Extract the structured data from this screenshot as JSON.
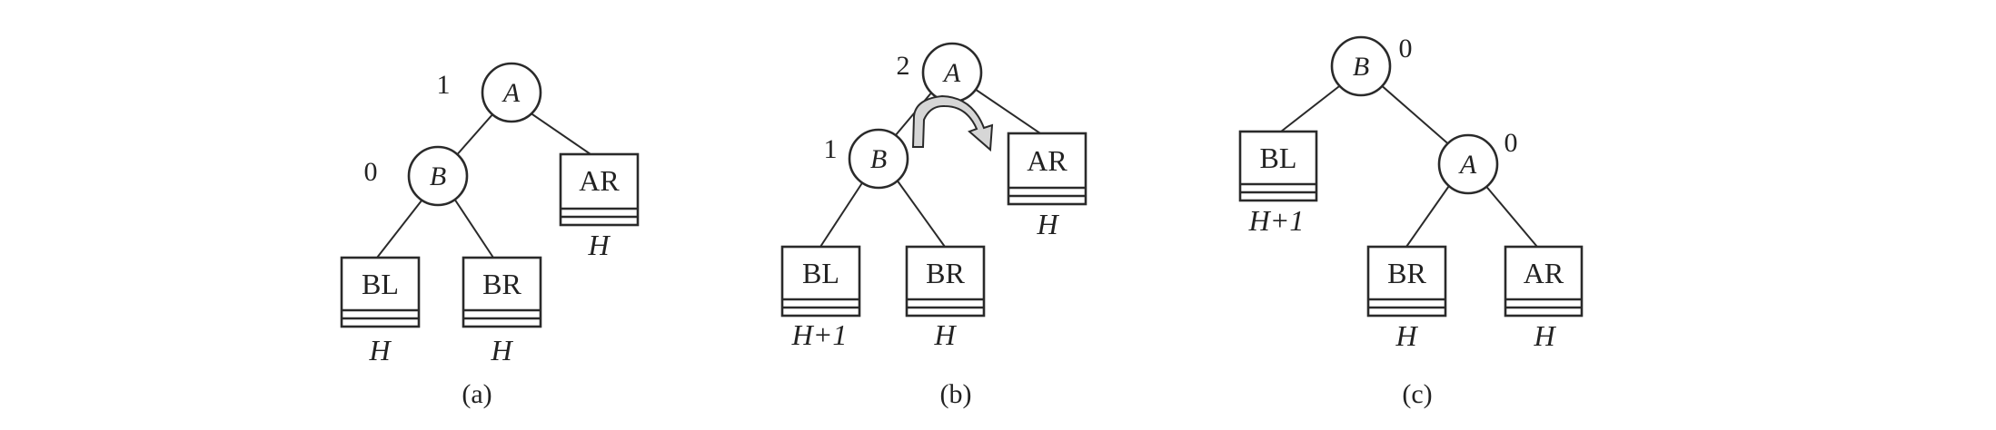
{
  "panels": {
    "a": {
      "caption": "(a)",
      "node_a": {
        "label": "A",
        "balance": "1"
      },
      "node_b": {
        "label": "B",
        "balance": "0"
      },
      "box_bl": {
        "label": "BL",
        "height": "H"
      },
      "box_br": {
        "label": "BR",
        "height": "H"
      },
      "box_ar": {
        "label": "AR",
        "height": "H"
      }
    },
    "b": {
      "caption": "(b)",
      "node_a": {
        "label": "A",
        "balance": "2"
      },
      "node_b": {
        "label": "B",
        "balance": "1"
      },
      "box_bl": {
        "label": "BL",
        "height": "H+1"
      },
      "box_br": {
        "label": "BR",
        "height": "H"
      },
      "box_ar": {
        "label": "AR",
        "height": "H"
      }
    },
    "c": {
      "caption": "(c)",
      "node_b": {
        "label": "B",
        "balance": "0"
      },
      "node_a": {
        "label": "A",
        "balance": "0"
      },
      "box_bl": {
        "label": "BL",
        "height": "H+1"
      },
      "box_br": {
        "label": "BR",
        "height": "H"
      },
      "box_ar": {
        "label": "AR",
        "height": "H"
      }
    }
  }
}
